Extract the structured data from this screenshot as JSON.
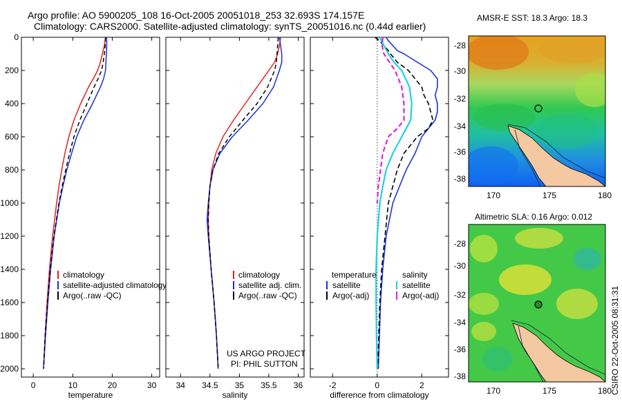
{
  "header": {
    "line1": "Argo profile: AO 5900205_108 16-Oct-2005 20051018_253 32.693S 174.157E",
    "line2": "Climatology: CARS2000. Satellite-adjusted climatology: synTS_20051016.nc (0.44d earlier)"
  },
  "colors": {
    "climatology": "#e02020",
    "satellite": "#1a2ee0",
    "argo": "#000000",
    "satellite_diff_sal": "#20d0e0",
    "argo_adj_sal": "#e020e0"
  },
  "chart_data": [
    {
      "type": "line",
      "name": "temperature-profile",
      "xlabel": "temperature",
      "ylabel": "",
      "xlim": [
        -3,
        32
      ],
      "ylim": [
        2050,
        0
      ],
      "xticks": [
        0,
        10,
        20,
        30
      ],
      "yticks": [
        0,
        200,
        400,
        600,
        800,
        1000,
        1200,
        1400,
        1600,
        1800,
        2000
      ],
      "legend": [
        "climatology",
        "satellite-adjusted climatology",
        "Argo(..raw -QC)"
      ],
      "series": [
        {
          "name": "climatology",
          "color": "#e02020",
          "dash": "",
          "depth": [
            0,
            50,
            100,
            150,
            200,
            250,
            300,
            400,
            500,
            600,
            700,
            800,
            900,
            1000,
            1200,
            1400,
            1600,
            1800,
            2000
          ],
          "values": [
            18.3,
            18.0,
            17.5,
            17.0,
            16.3,
            15.2,
            14.0,
            12.0,
            10.3,
            9.0,
            8.0,
            7.2,
            6.5,
            5.9,
            4.9,
            4.1,
            3.5,
            3.0,
            2.6
          ]
        },
        {
          "name": "satellite-adjusted climatology",
          "color": "#1a2ee0",
          "dash": "",
          "depth": [
            0,
            50,
            100,
            150,
            200,
            250,
            300,
            400,
            500,
            600,
            700,
            800,
            900,
            1000,
            1200,
            1400,
            1600,
            1800,
            2000
          ],
          "values": [
            18.6,
            18.6,
            18.5,
            18.4,
            18.3,
            17.8,
            17.0,
            15.0,
            12.8,
            11.0,
            9.7,
            8.5,
            7.5,
            6.6,
            5.3,
            4.4,
            3.7,
            3.1,
            2.6
          ]
        },
        {
          "name": "Argo(..raw -QC)",
          "color": "#000000",
          "dash": "6,4",
          "depth": [
            0,
            50,
            100,
            150,
            200,
            250,
            300,
            400,
            500,
            600,
            700,
            800,
            900,
            1000,
            1200,
            1400,
            1600,
            1800,
            2000
          ],
          "values": [
            18.3,
            18.2,
            18.0,
            17.7,
            17.3,
            16.4,
            15.4,
            13.6,
            11.8,
            10.3,
            9.2,
            8.2,
            7.3,
            6.5,
            5.2,
            4.3,
            3.6,
            3.0,
            2.6
          ]
        }
      ]
    },
    {
      "type": "line",
      "name": "salinity-profile",
      "xlabel": "salinity",
      "xlim": [
        33.75,
        36.1
      ],
      "ylim": [
        2050,
        0
      ],
      "xticks": [
        34,
        34.5,
        35,
        35.5,
        36
      ],
      "xtick_labels": [
        "34",
        "34.5",
        "35",
        "35.5",
        "36"
      ],
      "legend": [
        "climatology",
        "satellite adj. clim.",
        "Argo(..raw -QC)"
      ],
      "annotation": [
        "US ARGO PROJECT",
        "PI: PHIL SUTTON"
      ],
      "series": [
        {
          "name": "climatology",
          "color": "#e02020",
          "dash": "",
          "depth": [
            0,
            50,
            100,
            150,
            200,
            300,
            400,
            500,
            600,
            700,
            800,
            900,
            1000,
            1100,
            1200,
            1400,
            1600,
            1800,
            2000
          ],
          "values": [
            35.7,
            35.68,
            35.65,
            35.6,
            35.5,
            35.3,
            35.1,
            34.9,
            34.72,
            34.6,
            34.53,
            34.5,
            34.48,
            34.47,
            34.48,
            34.52,
            34.57,
            34.61,
            34.64
          ]
        },
        {
          "name": "satellite adj. clim.",
          "color": "#1a2ee0",
          "dash": "",
          "depth": [
            0,
            50,
            100,
            150,
            200,
            300,
            400,
            500,
            600,
            700,
            800,
            900,
            1000,
            1100,
            1200,
            1400,
            1600,
            1800,
            2000
          ],
          "values": [
            35.68,
            35.7,
            35.72,
            35.72,
            35.68,
            35.58,
            35.4,
            35.15,
            34.88,
            34.67,
            34.55,
            34.5,
            34.47,
            34.45,
            34.47,
            34.52,
            34.57,
            34.61,
            34.64
          ]
        },
        {
          "name": "Argo(..raw -QC)",
          "color": "#000000",
          "dash": "6,4",
          "depth": [
            0,
            50,
            100,
            150,
            200,
            300,
            400,
            500,
            600,
            700,
            800,
            900,
            1000,
            1100,
            1200,
            1400,
            1600,
            1800,
            2000
          ],
          "values": [
            35.66,
            35.65,
            35.64,
            35.63,
            35.6,
            35.48,
            35.3,
            35.06,
            34.83,
            34.65,
            34.55,
            34.5,
            34.48,
            34.47,
            34.48,
            34.52,
            34.57,
            34.61,
            34.64
          ]
        }
      ]
    },
    {
      "type": "line",
      "name": "difference-profile",
      "xlabel": "difference from climatology",
      "xlim": [
        -3,
        3.2
      ],
      "ylim": [
        2050,
        0
      ],
      "xticks": [
        -2,
        0,
        2
      ],
      "legend_left": {
        "title": "temperature",
        "items": [
          "satellite",
          "Argo(-adj)"
        ]
      },
      "legend_right": {
        "title": "salinity",
        "items": [
          "satellite",
          "Argo(-adj)"
        ]
      },
      "series": [
        {
          "name": "temperature satellite",
          "color": "#1a2ee0",
          "dash": "",
          "width": 1.6,
          "depth": [
            0,
            20,
            50,
            80,
            100,
            150,
            200,
            250,
            300,
            350,
            400,
            450,
            500,
            600,
            700,
            800,
            900,
            1000,
            1200,
            1400,
            1600,
            1800,
            2000
          ],
          "values": [
            0.4,
            0.5,
            0.7,
            0.9,
            1.2,
            1.8,
            2.4,
            2.7,
            2.7,
            2.6,
            2.7,
            2.7,
            2.6,
            2.0,
            1.7,
            1.3,
            1.0,
            0.7,
            0.4,
            0.25,
            0.15,
            0.1,
            0.05
          ]
        },
        {
          "name": "temperature Argo(-adj)",
          "color": "#000000",
          "dash": "7,4",
          "width": 1.6,
          "depth": [
            0,
            20,
            50,
            80,
            100,
            150,
            200,
            300,
            350,
            400,
            500,
            550,
            600,
            700,
            800,
            900,
            1000,
            1200,
            1400,
            1600,
            1800,
            2000
          ],
          "values": [
            -0.1,
            0.1,
            0.3,
            0.5,
            0.6,
            0.9,
            1.4,
            2.0,
            2.1,
            2.3,
            2.5,
            2.3,
            1.8,
            1.2,
            0.9,
            0.7,
            0.5,
            0.35,
            0.2,
            0.12,
            0.07,
            0.03
          ]
        },
        {
          "name": "salinity satellite",
          "color": "#20d0e0",
          "dash": "",
          "width": 2.2,
          "depth": [
            0,
            50,
            100,
            150,
            200,
            300,
            400,
            500,
            600,
            700,
            800,
            900,
            1000,
            1200,
            1400,
            1600,
            1800,
            2000
          ],
          "values": [
            0.12,
            0.3,
            0.5,
            0.75,
            1.1,
            1.45,
            1.55,
            1.5,
            1.1,
            0.7,
            0.4,
            0.25,
            0.12,
            0.0,
            -0.05,
            -0.05,
            -0.03,
            0.0
          ]
        },
        {
          "name": "salinity Argo(-adj)",
          "color": "#e020e0",
          "dash": "7,4",
          "width": 2.2,
          "depth": [
            0,
            50,
            100,
            150,
            200,
            300,
            400,
            500,
            550,
            600,
            700,
            800,
            900,
            1000
          ],
          "values": [
            0.25,
            0.22,
            0.3,
            0.55,
            0.8,
            1.1,
            1.2,
            1.2,
            0.9,
            0.5,
            0.25,
            0.15,
            0.05,
            0.0
          ]
        }
      ]
    }
  ],
  "maps": [
    {
      "name": "amsr-sst-map",
      "title": "AMSR-E SST: 18.3 Argo: 18.3",
      "xticks": [
        "170",
        "175",
        "180"
      ],
      "yticks": [
        "-28",
        "-30",
        "-32",
        "-34",
        "-36",
        "-38"
      ],
      "xlim": [
        168,
        180.5
      ],
      "ylim": [
        -38.6,
        -26.9
      ],
      "profile_location": {
        "lon": 174.157,
        "lat": -32.693
      }
    },
    {
      "name": "altimetric-sla-map",
      "title": "Altimetric SLA: 0.16 Argo: 0.012",
      "xticks": [
        "170",
        "175",
        "180"
      ],
      "yticks": [
        "-28",
        "-30",
        "-32",
        "-34",
        "-36",
        "-38"
      ],
      "xlim": [
        168,
        180.5
      ],
      "ylim": [
        -38.6,
        -26.9
      ],
      "profile_location": {
        "lon": 174.157,
        "lat": -32.693
      }
    }
  ],
  "side_label": "CSIRO 22-Oct-2005 08:31:31"
}
